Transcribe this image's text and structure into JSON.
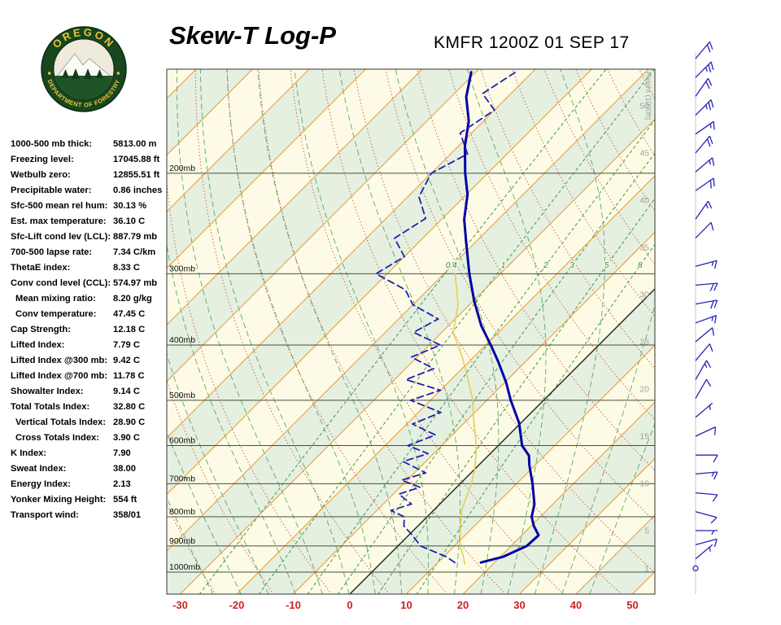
{
  "header": {
    "title": "Skew-T Log-P",
    "station_line": "KMFR 1200Z 01 SEP 17",
    "logo": {
      "top_text": "OREGON",
      "bottom_text": "DEPARTMENT OF FORESTRY"
    }
  },
  "stats": [
    {
      "label": "1000-500 mb thick:",
      "value": "5813.00 m"
    },
    {
      "label": "Freezing level:",
      "value": "17045.88 ft"
    },
    {
      "label": "Wetbulb zero:",
      "value": "12855.51 ft"
    },
    {
      "label": "Precipitable water:",
      "value": "0.86 inches"
    },
    {
      "label": "Sfc-500 mean rel hum:",
      "value": "30.13 %"
    },
    {
      "label": "Est. max temperature:",
      "value": "36.10 C"
    },
    {
      "label": "Sfc-Lift cond lev (LCL):",
      "value": "887.79 mb"
    },
    {
      "label": "700-500 lapse rate:",
      "value": "7.34 C/km"
    },
    {
      "label": "ThetaE index:",
      "value": "8.33 C"
    },
    {
      "label": "Conv cond level (CCL):",
      "value": "574.97 mb"
    },
    {
      "label": "Mean mixing ratio:",
      "value": "8.20 g/kg",
      "indent": true
    },
    {
      "label": "Conv temperature:",
      "value": "47.45 C",
      "indent": true
    },
    {
      "label": "Cap Strength:",
      "value": "12.18 C"
    },
    {
      "label": "Lifted Index:",
      "value": "7.79 C"
    },
    {
      "label": "Lifted Index @300 mb:",
      "value": "9.42 C"
    },
    {
      "label": "Lifted Index @700 mb:",
      "value": "11.78 C"
    },
    {
      "label": "Showalter Index:",
      "value": "9.14 C"
    },
    {
      "label": "Total Totals Index:",
      "value": "32.80 C"
    },
    {
      "label": "Vertical Totals Index:",
      "value": "28.90 C",
      "indent": true
    },
    {
      "label": "Cross Totals Index:",
      "value": "3.90 C",
      "indent": true
    },
    {
      "label": "K Index:",
      "value": "7.90"
    },
    {
      "label": "Sweat Index:",
      "value": "38.00"
    },
    {
      "label": "Energy Index:",
      "value": "2.13"
    },
    {
      "label": "Yonker Mixing Height:",
      "value": "554 ft"
    },
    {
      "label": "Transport wind:",
      "value": "358/01"
    }
  ],
  "chart_data": {
    "type": "skewt-log-p",
    "title": "Skew-T Log-P",
    "station": "KMFR 1200Z 01 SEP 17",
    "pressure_ticks_mb": [
      200,
      300,
      400,
      500,
      600,
      700,
      800,
      900,
      1000
    ],
    "temp_ticks_c": [
      -30,
      -20,
      -10,
      0,
      10,
      20,
      30,
      40,
      50
    ],
    "height_ticks_kft": [
      50,
      45,
      40,
      35,
      30,
      25,
      20,
      15,
      10,
      5,
      1
    ],
    "height_axis_title": "Height (1000ft)",
    "mixing_ratio_lines_gkg": [
      0.4,
      1,
      2,
      3,
      5,
      8
    ],
    "series": [
      {
        "name": "temperature",
        "color": "#0000A6",
        "style": "solid",
        "points": [
          [
            962,
            17.6
          ],
          [
            940,
            20.5
          ],
          [
            900,
            22.8
          ],
          [
            862,
            23.0
          ],
          [
            830,
            20.5
          ],
          [
            800,
            18.5
          ],
          [
            761,
            16.8
          ],
          [
            700,
            12.8
          ],
          [
            650,
            9.0
          ],
          [
            625,
            7.2
          ],
          [
            600,
            4.2
          ],
          [
            548,
            -0.3
          ],
          [
            500,
            -5.8
          ],
          [
            465,
            -9.8
          ],
          [
            428,
            -14.8
          ],
          [
            400,
            -19.1
          ],
          [
            370,
            -24.2
          ],
          [
            335,
            -29.8
          ],
          [
            300,
            -35.5
          ],
          [
            266,
            -41.3
          ],
          [
            241,
            -46.0
          ],
          [
            218,
            -49.8
          ],
          [
            200,
            -54.0
          ],
          [
            179,
            -58.9
          ],
          [
            162,
            -62.6
          ],
          [
            147,
            -67.3
          ],
          [
            133,
            -70.8
          ]
        ]
      },
      {
        "name": "dewpoint",
        "color": "#2020B0",
        "style": "dashed",
        "points": [
          [
            962,
            13.0
          ],
          [
            940,
            10.5
          ],
          [
            900,
            4.0
          ],
          [
            860,
            0.5
          ],
          [
            830,
            -2.5
          ],
          [
            800,
            -4.0
          ],
          [
            780,
            -7.5
          ],
          [
            760,
            -5.0
          ],
          [
            730,
            -9.0
          ],
          [
            710,
            -6.5
          ],
          [
            690,
            -11.0
          ],
          [
            670,
            -8.0
          ],
          [
            640,
            -14.0
          ],
          [
            620,
            -11.0
          ],
          [
            600,
            -16.0
          ],
          [
            575,
            -13.0
          ],
          [
            550,
            -19.0
          ],
          [
            525,
            -16.0
          ],
          [
            500,
            -23.5
          ],
          [
            480,
            -20.0
          ],
          [
            460,
            -28.0
          ],
          [
            440,
            -25.0
          ],
          [
            420,
            -31.0
          ],
          [
            400,
            -28.0
          ],
          [
            380,
            -35.0
          ],
          [
            360,
            -33.0
          ],
          [
            340,
            -40.0
          ],
          [
            320,
            -44.0
          ],
          [
            300,
            -52.0
          ],
          [
            280,
            -50.0
          ],
          [
            260,
            -55.0
          ],
          [
            240,
            -53.0
          ],
          [
            220,
            -58.0
          ],
          [
            200,
            -60.0
          ],
          [
            185,
            -57.0
          ],
          [
            170,
            -62.0
          ],
          [
            155,
            -60.0
          ],
          [
            145,
            -65.0
          ],
          [
            133,
            -63.0
          ]
        ]
      },
      {
        "name": "wetbulb",
        "color": "#E5CE55",
        "style": "solid",
        "points": [
          [
            968,
            15.0
          ],
          [
            940,
            13.5
          ],
          [
            900,
            11.0
          ],
          [
            860,
            9.0
          ],
          [
            820,
            7.0
          ],
          [
            780,
            5.0
          ],
          [
            740,
            3.5
          ],
          [
            700,
            2.0
          ],
          [
            660,
            0.0
          ],
          [
            620,
            -2.5
          ],
          [
            580,
            -5.5
          ],
          [
            540,
            -9.0
          ],
          [
            500,
            -12.5
          ],
          [
            460,
            -17.0
          ],
          [
            420,
            -22.0
          ],
          [
            380,
            -28.0
          ],
          [
            340,
            -32.0
          ],
          [
            300,
            -38.0
          ]
        ]
      }
    ],
    "wind_barbs_kft_dir_kt": [
      [
        55,
        40,
        20
      ],
      [
        53,
        45,
        25
      ],
      [
        51,
        35,
        20
      ],
      [
        49,
        45,
        25
      ],
      [
        47,
        55,
        15
      ],
      [
        45,
        40,
        20
      ],
      [
        43,
        50,
        15
      ],
      [
        41,
        55,
        20
      ],
      [
        38,
        35,
        15
      ],
      [
        36,
        45,
        10
      ],
      [
        33,
        75,
        15
      ],
      [
        31,
        85,
        20
      ],
      [
        29,
        80,
        20
      ],
      [
        27,
        70,
        15
      ],
      [
        25,
        50,
        10
      ],
      [
        23,
        40,
        10
      ],
      [
        21,
        30,
        15
      ],
      [
        19,
        30,
        10
      ],
      [
        17,
        50,
        5
      ],
      [
        15,
        65,
        10
      ],
      [
        13,
        90,
        10
      ],
      [
        11,
        85,
        15
      ],
      [
        9,
        95,
        10
      ],
      [
        7,
        105,
        10
      ],
      [
        5,
        90,
        5
      ],
      [
        3.5,
        75,
        10
      ],
      [
        2,
        50,
        5
      ],
      [
        1,
        358,
        1
      ]
    ],
    "colors": {
      "band_cream": "#FDFBE6",
      "band_green": "#E5F0E0",
      "isotherm": "#E89B3A",
      "zero_isotherm": "#222222",
      "dry_adiabat": "#CC6655",
      "moist_adiabat": "#4E9E5A",
      "mixing_line": "#3C9C46",
      "mixing_label": "#2E8B3A",
      "pressure_line": "#44503F",
      "pressure_label": "#111111",
      "temp_label": "#CC2222",
      "height_label": "#9AA79A",
      "barb": "#2424B4",
      "barb_axis": "#BFC8BF"
    }
  }
}
